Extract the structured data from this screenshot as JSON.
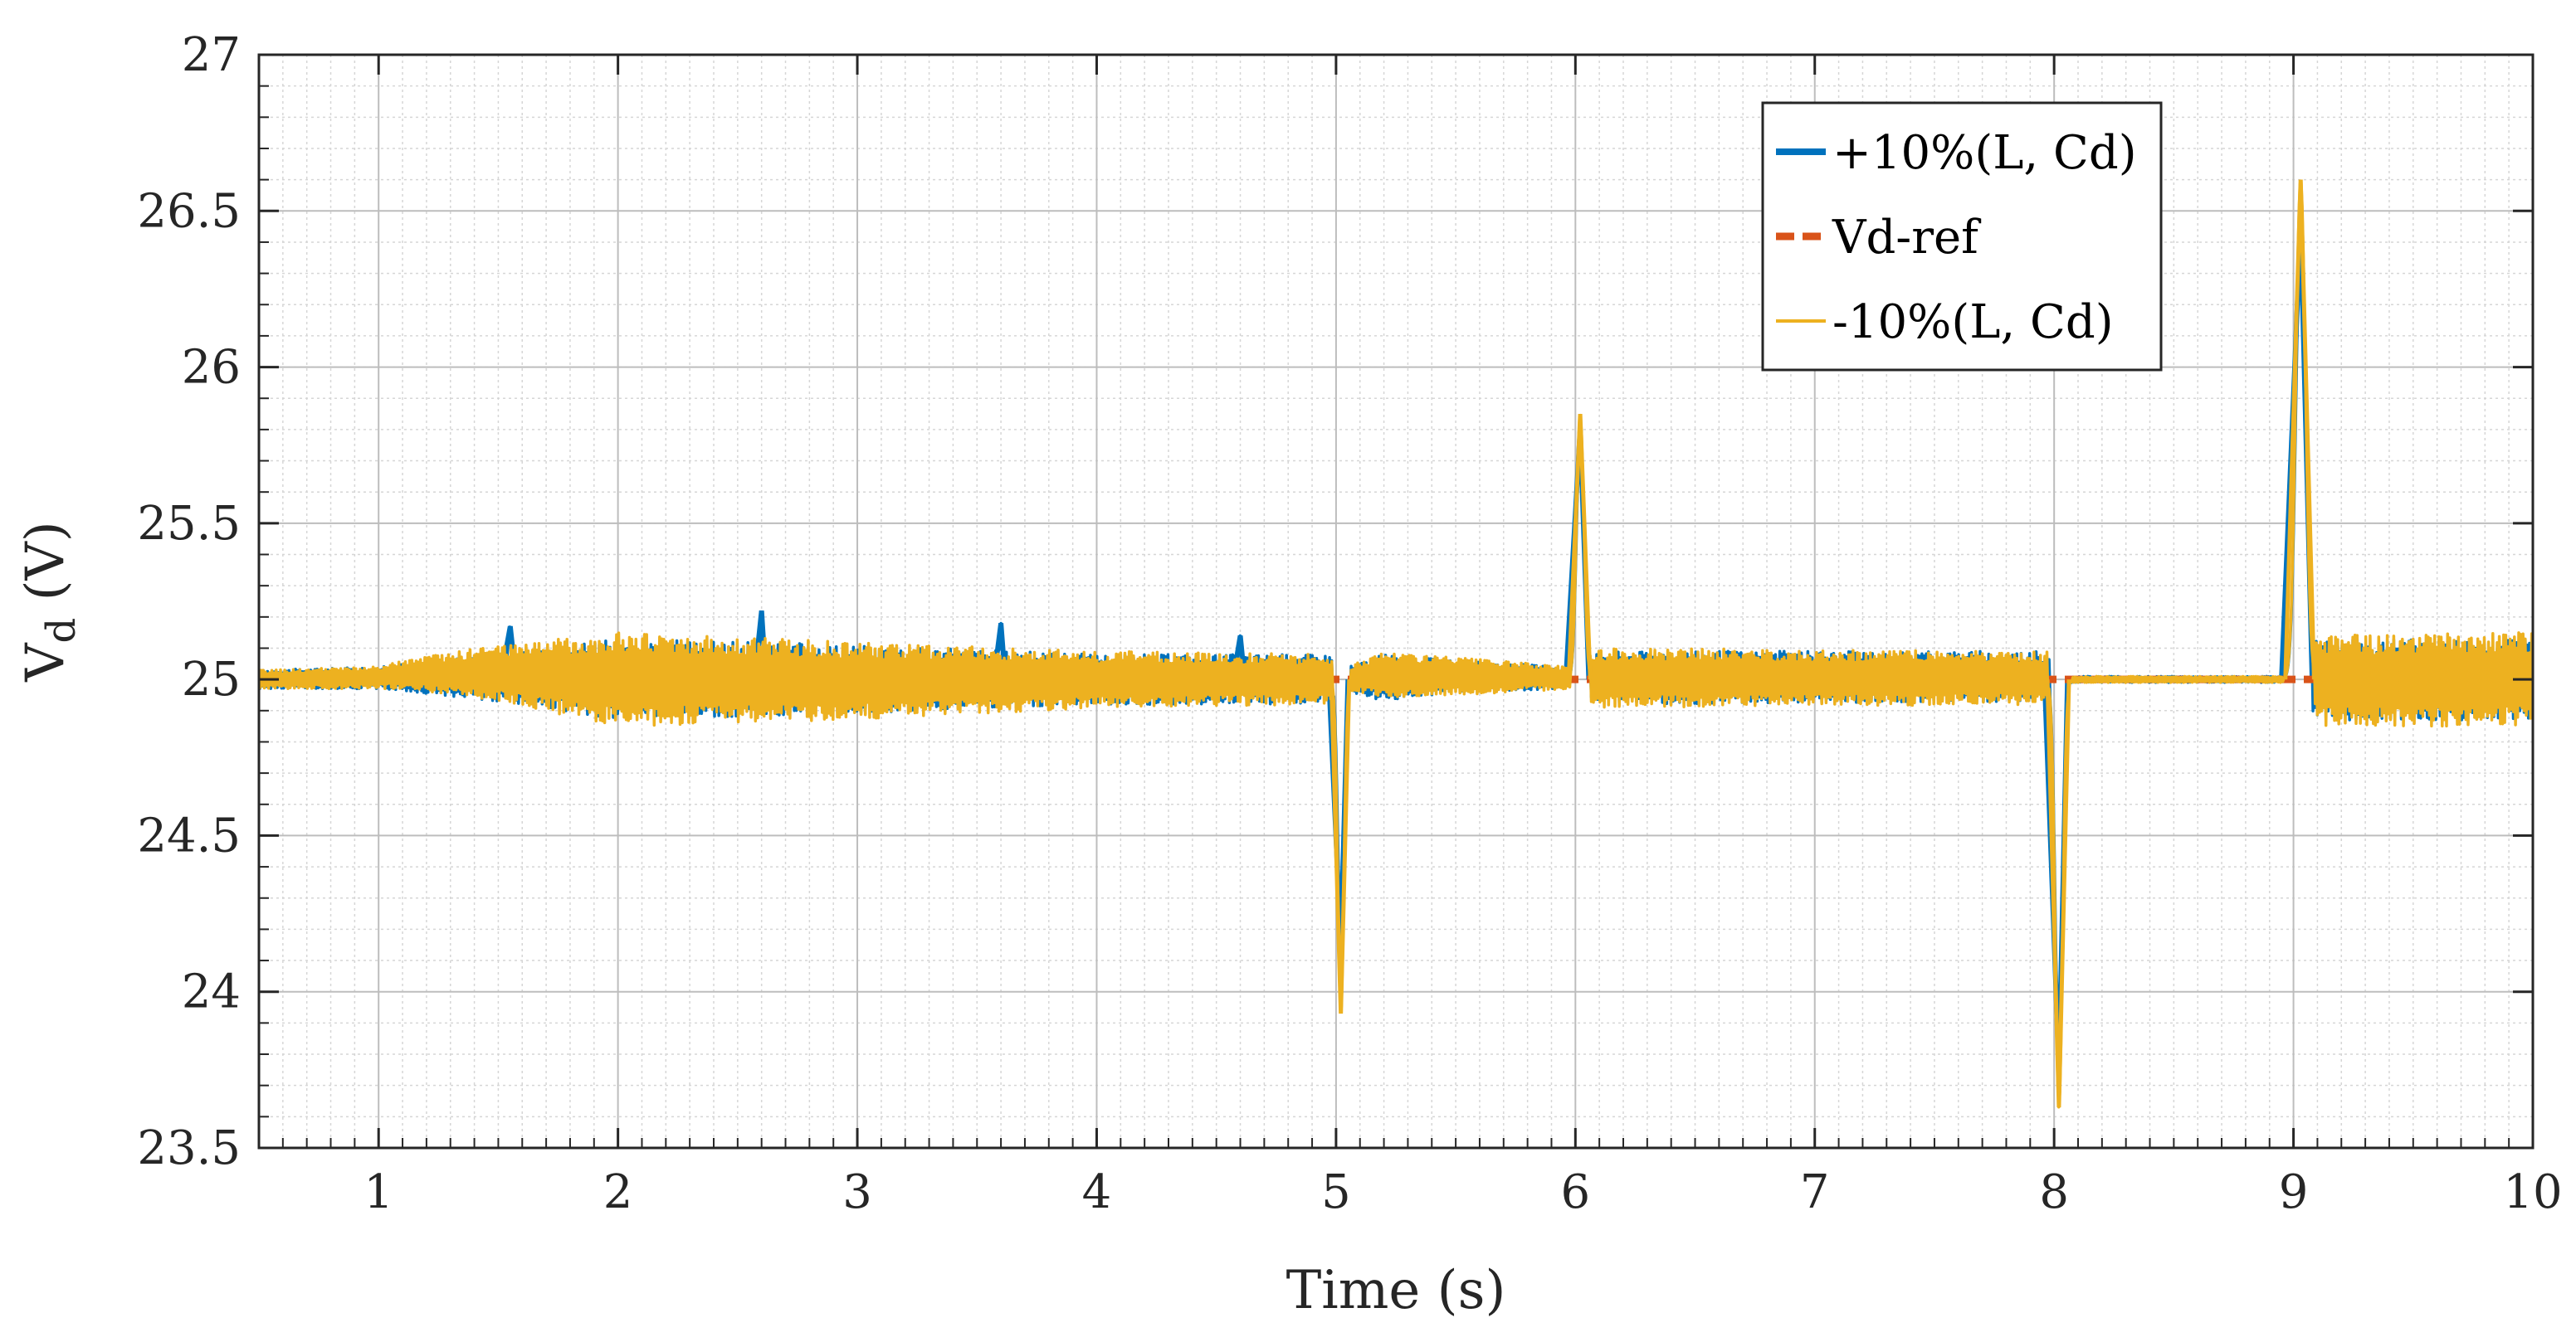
{
  "chart_data": {
    "type": "line",
    "title": "",
    "xlabel": "Time (s)",
    "ylabel_main": "V",
    "ylabel_sub": "d",
    "ylabel_unit": " (V)",
    "xlim": [
      0.5,
      10
    ],
    "ylim": [
      23.5,
      27
    ],
    "xticks": [
      1,
      2,
      3,
      4,
      5,
      6,
      7,
      8,
      9,
      10
    ],
    "xtick_labels": [
      "1",
      "2",
      "3",
      "4",
      "5",
      "6",
      "7",
      "8",
      "9",
      "10"
    ],
    "yticks": [
      23.5,
      24,
      24.5,
      25,
      25.5,
      26,
      26.5,
      27
    ],
    "ytick_labels": [
      "23.5",
      "24",
      "24.5",
      "25",
      "25.5",
      "26",
      "26.5",
      "27"
    ],
    "grid": true,
    "minor_grid": true,
    "legend_position": "top-right",
    "series": [
      {
        "name": "+10%(L, Cd)",
        "color": "#0072BD",
        "style": "solid",
        "envelope": [
          {
            "t": 0.5,
            "lo": 24.97,
            "hi": 25.03
          },
          {
            "t": 1.0,
            "lo": 24.97,
            "hi": 25.04
          },
          {
            "t": 1.5,
            "lo": 24.93,
            "hi": 25.08
          },
          {
            "t": 2.0,
            "lo": 24.87,
            "hi": 25.13
          },
          {
            "t": 3.0,
            "lo": 24.89,
            "hi": 25.11
          },
          {
            "t": 4.0,
            "lo": 24.92,
            "hi": 25.08
          },
          {
            "t": 4.99,
            "lo": 24.92,
            "hi": 25.08
          },
          {
            "t": 5.01,
            "lo": 24.97,
            "hi": 25.03
          },
          {
            "t": 5.2,
            "lo": 24.93,
            "hi": 25.08
          },
          {
            "t": 5.5,
            "lo": 24.96,
            "hi": 25.06
          },
          {
            "t": 5.99,
            "lo": 24.97,
            "hi": 25.04
          },
          {
            "t": 6.1,
            "lo": 24.92,
            "hi": 25.09
          },
          {
            "t": 7.99,
            "lo": 24.93,
            "hi": 25.09
          },
          {
            "t": 8.05,
            "lo": 24.99,
            "hi": 25.01
          },
          {
            "t": 9.0,
            "lo": 24.99,
            "hi": 25.01
          },
          {
            "t": 9.1,
            "lo": 24.87,
            "hi": 25.13
          },
          {
            "t": 10.0,
            "lo": 24.87,
            "hi": 25.13
          }
        ],
        "spikes": [
          {
            "t": 1.55,
            "v": 25.17,
            "w": 0.04
          },
          {
            "t": 2.6,
            "v": 25.22,
            "w": 0.03
          },
          {
            "t": 3.6,
            "v": 25.18,
            "w": 0.03
          },
          {
            "t": 4.6,
            "v": 25.14,
            "w": 0.03
          },
          {
            "t": 5.02,
            "v": 24.15,
            "w": 0.05
          },
          {
            "t": 6.02,
            "v": 25.8,
            "w": 0.06
          },
          {
            "t": 8.02,
            "v": 23.75,
            "w": 0.06
          },
          {
            "t": 9.03,
            "v": 26.45,
            "w": 0.08
          }
        ]
      },
      {
        "name": "Vd-ref",
        "color": "#D95319",
        "style": "dashed",
        "value": 25.0
      },
      {
        "name": "-10%(L, Cd)",
        "color": "#EDB120",
        "style": "solid",
        "envelope": [
          {
            "t": 0.5,
            "lo": 24.97,
            "hi": 25.03
          },
          {
            "t": 1.0,
            "lo": 24.97,
            "hi": 25.04
          },
          {
            "t": 1.1,
            "lo": 24.97,
            "hi": 25.06
          },
          {
            "t": 1.5,
            "lo": 24.93,
            "hi": 25.11
          },
          {
            "t": 2.0,
            "lo": 24.85,
            "hi": 25.15
          },
          {
            "t": 3.0,
            "lo": 24.87,
            "hi": 25.12
          },
          {
            "t": 4.0,
            "lo": 24.91,
            "hi": 25.09
          },
          {
            "t": 4.99,
            "lo": 24.92,
            "hi": 25.08
          },
          {
            "t": 5.01,
            "lo": 24.97,
            "hi": 25.03
          },
          {
            "t": 5.2,
            "lo": 24.94,
            "hi": 25.09
          },
          {
            "t": 5.5,
            "lo": 24.95,
            "hi": 25.07
          },
          {
            "t": 5.99,
            "lo": 24.97,
            "hi": 25.04
          },
          {
            "t": 6.1,
            "lo": 24.91,
            "hi": 25.1
          },
          {
            "t": 7.99,
            "lo": 24.92,
            "hi": 25.09
          },
          {
            "t": 8.05,
            "lo": 24.99,
            "hi": 25.01
          },
          {
            "t": 9.0,
            "lo": 24.99,
            "hi": 25.01
          },
          {
            "t": 9.1,
            "lo": 24.85,
            "hi": 25.14
          },
          {
            "t": 10.0,
            "lo": 24.85,
            "hi": 25.15
          }
        ],
        "spikes": [
          {
            "t": 5.02,
            "v": 23.93,
            "w": 0.05
          },
          {
            "t": 6.02,
            "v": 25.85,
            "w": 0.06
          },
          {
            "t": 8.02,
            "v": 23.63,
            "w": 0.06
          },
          {
            "t": 9.03,
            "v": 26.6,
            "w": 0.08
          }
        ]
      }
    ]
  }
}
